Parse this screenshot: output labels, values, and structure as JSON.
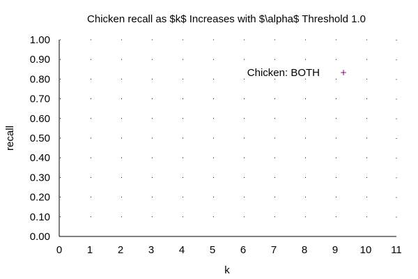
{
  "chart_data": {
    "type": "scatter",
    "title": "Chicken recall as $k$ Increases with $\\alpha$ Threshold 1.0",
    "xlabel": "k",
    "ylabel": "recall",
    "xlim": [
      0,
      11
    ],
    "ylim": [
      0,
      1
    ],
    "x_ticks": [
      "0",
      "1",
      "2",
      "3",
      "4",
      "5",
      "6",
      "7",
      "8",
      "9",
      "10",
      "11"
    ],
    "y_ticks": [
      "0.00",
      "0.10",
      "0.20",
      "0.30",
      "0.40",
      "0.50",
      "0.60",
      "0.70",
      "0.80",
      "0.90",
      "1.00"
    ],
    "grid": "dotted, at major ticks",
    "legend_position": "top-right",
    "series": [
      {
        "name": "Chicken: BOTH",
        "color": "#800080",
        "marker": "plus",
        "x": [],
        "y": []
      }
    ]
  }
}
